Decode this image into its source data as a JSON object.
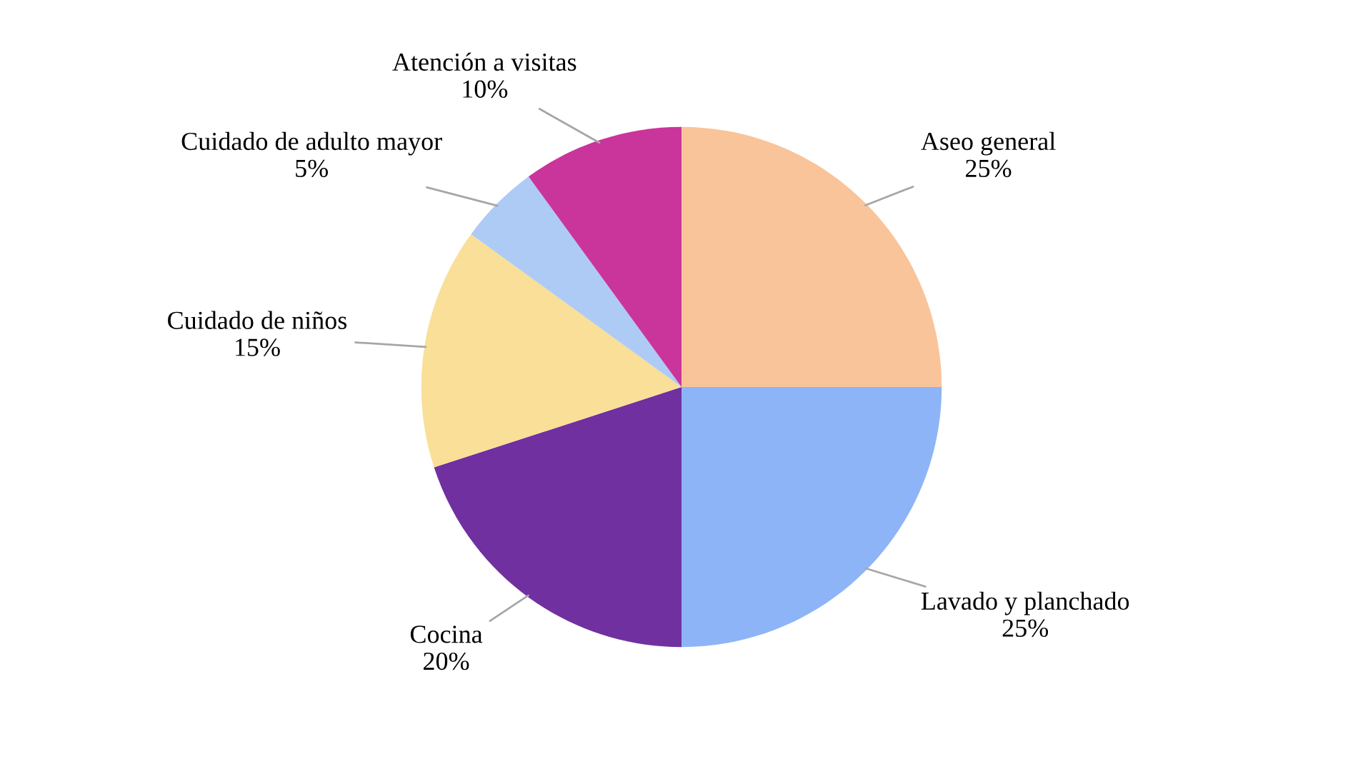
{
  "chart_data": {
    "type": "pie",
    "categories": [
      "Aseo general",
      "Lavado y planchado",
      "Cocina",
      "Cuidado de niños",
      "Cuidado de adulto mayor",
      "Atención a visitas"
    ],
    "values": [
      25,
      25,
      20,
      15,
      5,
      10
    ],
    "value_labels": [
      "25%",
      "25%",
      "20%",
      "15%",
      "5%",
      "10%"
    ],
    "colors": [
      "#f9c49a",
      "#8eb4f8",
      "#7030a0",
      "#f9df97",
      "#aecbf5",
      "#c9359a"
    ],
    "legend": false
  }
}
